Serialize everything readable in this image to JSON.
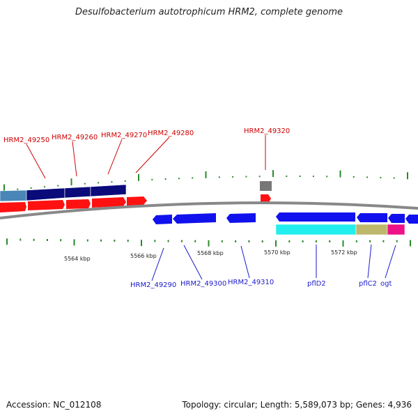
{
  "title": "Desulfobacterium autotrophicum HRM2, complete genome",
  "footer": {
    "accession": "Accession: NC_012108",
    "summary": "Topology: circular; Length: 5,589,073 bp; Genes: 4,936"
  },
  "scale_labels": [
    "5564 kbp",
    "5566 kbp",
    "5568 kbp",
    "5570 kbp",
    "5572 kbp"
  ],
  "colors": {
    "forward_gene": "#ff1111",
    "reverse_gene": "#1111ee",
    "forward_feature": "#0a0a7a",
    "forward_feature_light": "#4a86b8",
    "unknown_feature": "#777777",
    "cyan_feature": "#22eeee",
    "khaki_feature": "#bdb76b",
    "magenta_feature": "#ee1188",
    "ticks": "#2a8a2a",
    "backbone": "#888888"
  },
  "genes_forward": [
    {
      "label": "HRM2_49250"
    },
    {
      "label": "HRM2_49260"
    },
    {
      "label": "HRM2_49270"
    },
    {
      "label": "HRM2_49280"
    },
    {
      "label": "HRM2_49320"
    }
  ],
  "genes_reverse": [
    {
      "label": "HRM2_49290"
    },
    {
      "label": "HRM2_49300"
    },
    {
      "label": "HRM2_49310"
    },
    {
      "label": "pflD2"
    },
    {
      "label": "pflC2"
    },
    {
      "label": "ogt"
    }
  ]
}
